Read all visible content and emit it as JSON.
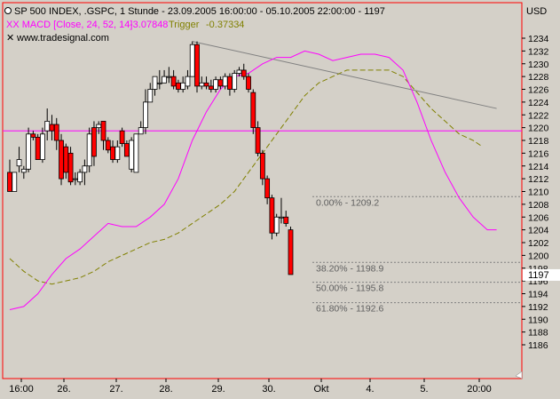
{
  "header": {
    "title": "SP 500 INDEX, .GSPC, 1 Stunde - 23.09.2005 16:00:00 - 05.10.2005 22:00:00 - 1197",
    "indicator_name": "XX MACD [Close, 24, 52, 14]",
    "indicator_value": "-3.07848",
    "trigger_label": "Trigger",
    "trigger_value": "-0.37334",
    "watermark": "www.tradesignal.com"
  },
  "colors": {
    "background": "#d4d0c8",
    "plot_border": "#ff0000",
    "candle_up": "#ffffff",
    "candle_down": "#ff0000",
    "macd_line": "#ff00ff",
    "trigger_line": "#808000",
    "horizontal_line": "#ff00ff",
    "trendline": "#808080",
    "fib_line": "#808080"
  },
  "chart_data": {
    "type": "candlestick",
    "title": "SP 500 INDEX, .GSPC, 1 Stunde",
    "y_axis": {
      "unit_label": "USD",
      "range": [
        1184,
        1238
      ],
      "ticks": [
        1186,
        1188,
        1190,
        1192,
        1194,
        1196,
        1198,
        1200,
        1202,
        1204,
        1206,
        1208,
        1210,
        1212,
        1214,
        1216,
        1218,
        1220,
        1222,
        1224,
        1226,
        1228,
        1230,
        1232,
        1234
      ],
      "last_price": "1197"
    },
    "x_axis": {
      "labels": [
        "16:00",
        "26.",
        "27.",
        "28.",
        "29.",
        "30.",
        "Okt",
        "4.",
        "5.",
        "20:00"
      ]
    },
    "candles": [
      {
        "o": 1213,
        "h": 1215,
        "l": 1210,
        "c": 1210
      },
      {
        "o": 1210,
        "h": 1213,
        "l": 1210,
        "c": 1213
      },
      {
        "o": 1214,
        "h": 1217,
        "l": 1213,
        "c": 1215
      },
      {
        "o": 1213,
        "h": 1214,
        "l": 1212,
        "c": 1213.5
      },
      {
        "o": 1213.5,
        "h": 1220,
        "l": 1213,
        "c": 1219
      },
      {
        "o": 1219,
        "h": 1219.5,
        "l": 1218,
        "c": 1218.5
      },
      {
        "o": 1218.5,
        "h": 1219,
        "l": 1215,
        "c": 1215
      },
      {
        "o": 1215,
        "h": 1220,
        "l": 1214.5,
        "c": 1219
      },
      {
        "o": 1219.5,
        "h": 1223,
        "l": 1218,
        "c": 1221
      },
      {
        "o": 1220.5,
        "h": 1222,
        "l": 1218,
        "c": 1219.5
      },
      {
        "o": 1220.5,
        "h": 1221.5,
        "l": 1216.5,
        "c": 1218
      },
      {
        "o": 1218,
        "h": 1219,
        "l": 1211,
        "c": 1212
      },
      {
        "o": 1217,
        "h": 1217.5,
        "l": 1212,
        "c": 1213
      },
      {
        "o": 1216,
        "h": 1217,
        "l": 1211,
        "c": 1211.5
      },
      {
        "o": 1212,
        "h": 1213,
        "l": 1211,
        "c": 1212
      },
      {
        "o": 1211.5,
        "h": 1213.5,
        "l": 1211,
        "c": 1213
      },
      {
        "o": 1213,
        "h": 1215,
        "l": 1211,
        "c": 1214
      },
      {
        "o": 1214,
        "h": 1220,
        "l": 1213,
        "c": 1219
      },
      {
        "o": 1220,
        "h": 1221,
        "l": 1214,
        "c": 1215.5
      },
      {
        "o": 1220,
        "h": 1221,
        "l": 1219,
        "c": 1220.5
      },
      {
        "o": 1221,
        "h": 1221,
        "l": 1216.5,
        "c": 1218
      },
      {
        "o": 1218,
        "h": 1218.5,
        "l": 1216,
        "c": 1216.5
      },
      {
        "o": 1217,
        "h": 1218,
        "l": 1214.5,
        "c": 1215
      },
      {
        "o": 1215,
        "h": 1218,
        "l": 1214.5,
        "c": 1217
      },
      {
        "o": 1219.5,
        "h": 1220,
        "l": 1217,
        "c": 1217.5
      },
      {
        "o": 1217.5,
        "h": 1218,
        "l": 1215.5,
        "c": 1215.5
      },
      {
        "o": 1213.5,
        "h": 1218.5,
        "l": 1213,
        "c": 1218
      },
      {
        "o": 1213,
        "h": 1219,
        "l": 1213,
        "c": 1219
      },
      {
        "o": 1219,
        "h": 1221,
        "l": 1219,
        "c": 1220
      },
      {
        "o": 1220,
        "h": 1226,
        "l": 1219,
        "c": 1224
      },
      {
        "o": 1224,
        "h": 1227,
        "l": 1224,
        "c": 1226
      },
      {
        "o": 1226,
        "h": 1228,
        "l": 1225,
        "c": 1228
      },
      {
        "o": 1227,
        "h": 1229,
        "l": 1226,
        "c": 1227
      },
      {
        "o": 1227,
        "h": 1229,
        "l": 1227,
        "c": 1228
      },
      {
        "o": 1228,
        "h": 1229.5,
        "l": 1227,
        "c": 1228
      },
      {
        "o": 1228,
        "h": 1229,
        "l": 1226,
        "c": 1226.5
      },
      {
        "o": 1227,
        "h": 1227.5,
        "l": 1225.5,
        "c": 1226
      },
      {
        "o": 1226,
        "h": 1228,
        "l": 1225.5,
        "c": 1227
      },
      {
        "o": 1226.5,
        "h": 1229,
        "l": 1226,
        "c": 1228
      },
      {
        "o": 1228,
        "h": 1233.5,
        "l": 1228,
        "c": 1233
      },
      {
        "o": 1233,
        "h": 1233.5,
        "l": 1225.5,
        "c": 1226.5
      },
      {
        "o": 1226.5,
        "h": 1228,
        "l": 1226,
        "c": 1227
      },
      {
        "o": 1227,
        "h": 1228,
        "l": 1226,
        "c": 1226.5
      },
      {
        "o": 1226.5,
        "h": 1227.5,
        "l": 1225.5,
        "c": 1226
      },
      {
        "o": 1226,
        "h": 1228,
        "l": 1225.5,
        "c": 1227.5
      },
      {
        "o": 1227.5,
        "h": 1228,
        "l": 1226,
        "c": 1226.5
      },
      {
        "o": 1226.5,
        "h": 1228.5,
        "l": 1226,
        "c": 1228
      },
      {
        "o": 1228,
        "h": 1228.5,
        "l": 1225,
        "c": 1226
      },
      {
        "o": 1226,
        "h": 1229,
        "l": 1225.5,
        "c": 1228.5
      },
      {
        "o": 1228.5,
        "h": 1229.5,
        "l": 1228,
        "c": 1229
      },
      {
        "o": 1229,
        "h": 1230,
        "l": 1227.5,
        "c": 1228
      },
      {
        "o": 1228,
        "h": 1228.5,
        "l": 1225.5,
        "c": 1226
      },
      {
        "o": 1225.5,
        "h": 1226,
        "l": 1219,
        "c": 1220
      },
      {
        "o": 1220,
        "h": 1221,
        "l": 1215.5,
        "c": 1216
      },
      {
        "o": 1216,
        "h": 1216.5,
        "l": 1211,
        "c": 1212
      },
      {
        "o": 1212,
        "h": 1212.5,
        "l": 1208,
        "c": 1209
      },
      {
        "o": 1209,
        "h": 1209.5,
        "l": 1202.5,
        "c": 1203.5
      },
      {
        "o": 1203.5,
        "h": 1206.5,
        "l": 1203,
        "c": 1206
      },
      {
        "o": 1206,
        "h": 1209,
        "l": 1205,
        "c": 1206
      },
      {
        "o": 1206,
        "h": 1207,
        "l": 1204.5,
        "c": 1205
      },
      {
        "o": 1204,
        "h": 1204.5,
        "l": 1197,
        "c": 1197
      }
    ],
    "macd_line": [
      [
        0,
        1191.5
      ],
      [
        3,
        1192
      ],
      [
        6,
        1194
      ],
      [
        9,
        1197
      ],
      [
        12,
        1199.5
      ],
      [
        15,
        1201
      ],
      [
        18,
        1203
      ],
      [
        21,
        1205
      ],
      [
        24,
        1204.5
      ],
      [
        27,
        1204.5
      ],
      [
        30,
        1206
      ],
      [
        33,
        1208
      ],
      [
        36,
        1212
      ],
      [
        39,
        1218
      ],
      [
        42,
        1222.5
      ],
      [
        45,
        1226
      ],
      [
        48,
        1228
      ],
      [
        51,
        1228.5
      ],
      [
        54,
        1230
      ],
      [
        57,
        1231
      ],
      [
        60,
        1231
      ],
      [
        63,
        1232
      ],
      [
        66,
        1231.5
      ],
      [
        69,
        1230.5
      ],
      [
        72,
        1231
      ],
      [
        75,
        1231.5
      ],
      [
        78,
        1231.5
      ],
      [
        81,
        1231
      ],
      [
        84,
        1229
      ],
      [
        87,
        1224
      ],
      [
        90,
        1218
      ],
      [
        93,
        1213
      ],
      [
        96,
        1209
      ],
      [
        99,
        1206
      ],
      [
        102,
        1204
      ],
      [
        104,
        1204
      ]
    ],
    "trigger_line": [
      [
        0,
        1199.5
      ],
      [
        3,
        1197.5
      ],
      [
        6,
        1196
      ],
      [
        9,
        1195.5
      ],
      [
        12,
        1196
      ],
      [
        15,
        1196.5
      ],
      [
        18,
        1197.5
      ],
      [
        21,
        1199
      ],
      [
        24,
        1200
      ],
      [
        27,
        1201
      ],
      [
        30,
        1202
      ],
      [
        33,
        1202.5
      ],
      [
        36,
        1203.5
      ],
      [
        39,
        1205
      ],
      [
        42,
        1206.5
      ],
      [
        45,
        1208
      ],
      [
        48,
        1210
      ],
      [
        51,
        1213
      ],
      [
        54,
        1216
      ],
      [
        57,
        1219
      ],
      [
        60,
        1222
      ],
      [
        63,
        1225
      ],
      [
        66,
        1227
      ],
      [
        69,
        1228
      ],
      [
        72,
        1229
      ],
      [
        75,
        1229
      ],
      [
        78,
        1229
      ],
      [
        81,
        1229
      ],
      [
        84,
        1228
      ],
      [
        87,
        1225.5
      ],
      [
        90,
        1223
      ],
      [
        93,
        1221
      ],
      [
        96,
        1219
      ],
      [
        99,
        1218
      ],
      [
        101,
        1217
      ]
    ],
    "horizontal_line": 1219.5,
    "trendline": {
      "start_candle": 39,
      "start_value": 1233.5,
      "end_candle": 104,
      "end_value": 1223
    },
    "fibonacci": [
      {
        "label": "0.00% - 1209.2",
        "value": 1209.2
      },
      {
        "label": "38.20% - 1198.9",
        "value": 1198.9
      },
      {
        "label": "50.00% - 1195.8",
        "value": 1195.8
      },
      {
        "label": "61.80% - 1192.6",
        "value": 1192.6
      }
    ]
  }
}
